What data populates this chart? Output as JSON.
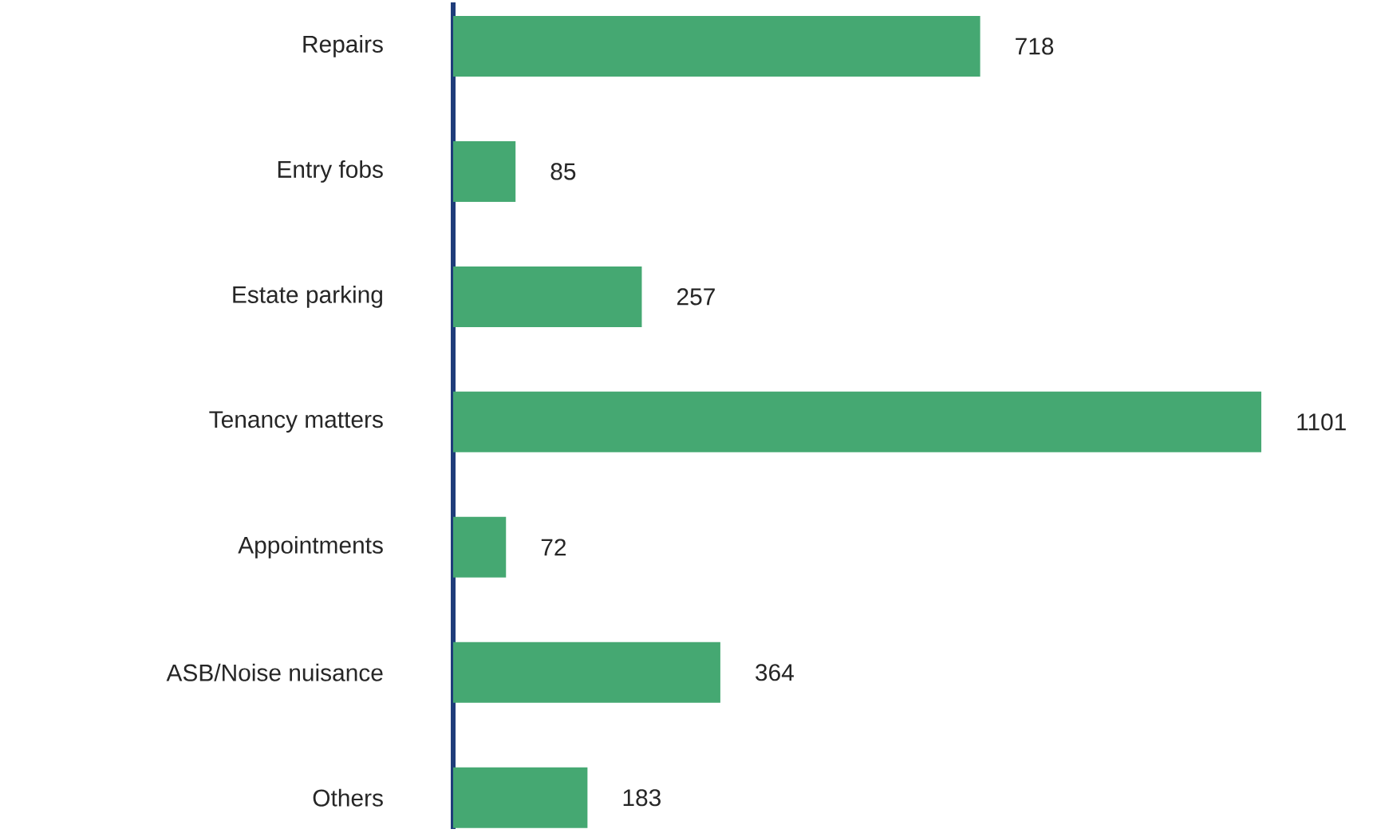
{
  "chart_data": {
    "type": "bar",
    "orientation": "horizontal",
    "categories": [
      "Repairs",
      "Entry fobs",
      "Estate parking",
      "Tenancy matters",
      "Appointments",
      "ASB/Noise nuisance",
      "Others"
    ],
    "values": [
      718,
      85,
      257,
      1101,
      72,
      364,
      183
    ],
    "color": "#45a872",
    "data_labels": true
  }
}
